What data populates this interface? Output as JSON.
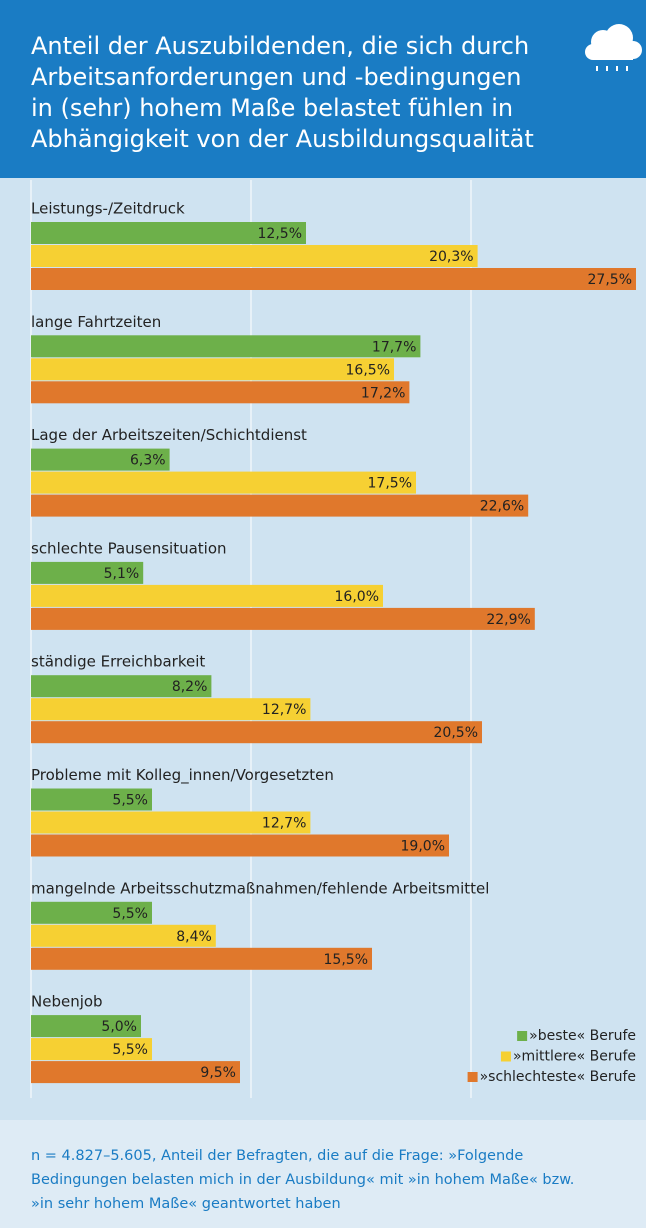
{
  "chart_data": {
    "type": "barh",
    "title": [
      "Anteil der Auszubildenden, die sich durch",
      "Arbeitsanforderungen und -bedingungen",
      "in (sehr) hohem Maße belastet fühlen in",
      "Abhängigkeit von der Ausbildungsqualität"
    ],
    "categories": [
      "Leistungs-/Zeitdruck",
      "lange Fahrtzeiten",
      "Lage der Arbeitszeiten/Schichtdienst",
      "schlechte Pausensituation",
      "ständige Erreichbarkeit",
      "Probleme mit Kolleg_innen/Vorgesetzten",
      "mangelnde Arbeitsschutzmaßnahmen/fehlende Arbeitsmittel",
      "Nebenjob"
    ],
    "series": [
      {
        "name": "»beste« Berufe",
        "color": "#6db04a",
        "values": [
          12.5,
          17.7,
          6.3,
          5.1,
          8.2,
          5.5,
          5.5,
          5.0
        ],
        "value_labels": [
          "12,5%",
          "17,7%",
          "6,3%",
          "5,1%",
          "8,2%",
          "5,5%",
          "5,5%",
          "5,0%"
        ]
      },
      {
        "name": "»mittlere« Berufe",
        "color": "#f6d033",
        "values": [
          20.3,
          16.5,
          17.5,
          16.0,
          12.7,
          12.7,
          8.4,
          5.5
        ],
        "value_labels": [
          "20,3%",
          "16,5%",
          "17,5%",
          "16,0%",
          "12,7%",
          "12,7%",
          "8,4%",
          "5,5%"
        ]
      },
      {
        "name": "»schlechteste« Berufe",
        "color": "#e0782c",
        "values": [
          27.5,
          17.2,
          22.6,
          22.9,
          20.5,
          19.0,
          15.5,
          9.5
        ],
        "value_labels": [
          "27,5%",
          "17,2%",
          "22,6%",
          "22,9%",
          "20,5%",
          "19,0%",
          "15,5%",
          "9,5%"
        ]
      }
    ],
    "xlim": [
      0,
      27.5
    ],
    "xticks": [
      0,
      10,
      20
    ],
    "grid": true,
    "legend": "lower right",
    "footnote": [
      "n = 4.827–5.605, Anteil der Befragten, die auf die Frage: »Folgende",
      "Bedingungen belasten mich in der Ausbildung« mit »in hohem Maße« bzw.",
      "»in sehr hohem Maße« geantwortet haben"
    ]
  }
}
